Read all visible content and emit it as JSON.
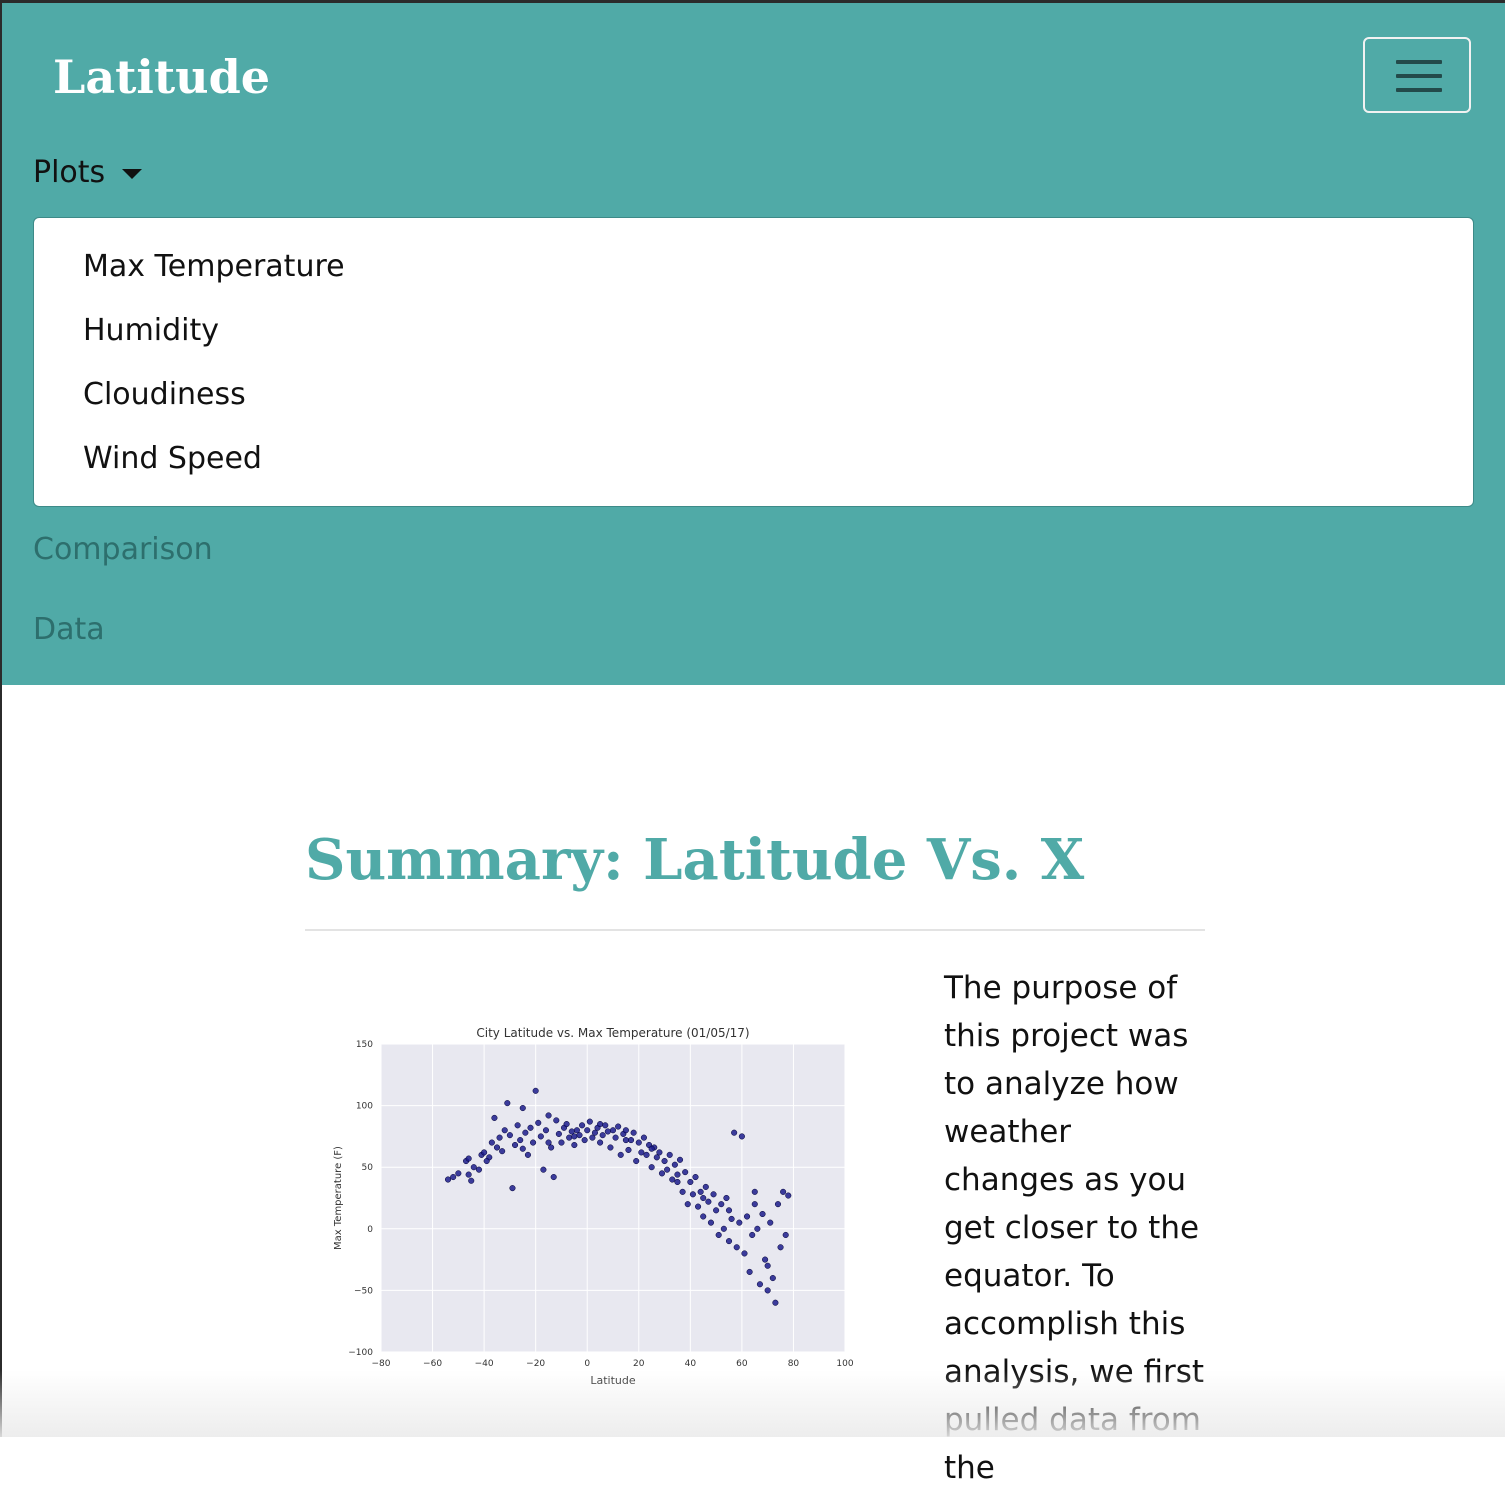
{
  "navbar": {
    "brand": "Latitude",
    "toggle_icon": "hamburger-menu-icon",
    "dropdown": {
      "label": "Plots",
      "caret_icon": "caret-down-icon",
      "items": [
        "Max Temperature",
        "Humidity",
        "Cloudiness",
        "Wind Speed"
      ]
    },
    "links": [
      "Comparison",
      "Data"
    ]
  },
  "main": {
    "heading": "Summary: Latitude Vs. X",
    "paragraph": "The purpose of this project was to analyze how weather changes as you get closer to the equator. To accomplish this analysis, we first pulled data from the"
  },
  "colors": {
    "accent": "#50aaa7",
    "dark_teal": "#2d6f6d",
    "marker": "#1c1c8c"
  },
  "chart_data": {
    "type": "scatter",
    "title": "City Latitude vs. Max Temperature (01/05/17)",
    "xlabel": "Latitude",
    "ylabel": "Max Temperature (F)",
    "xlim": [
      -80,
      100
    ],
    "ylim": [
      -100,
      150
    ],
    "xticks": [
      "−80",
      "−60",
      "−40",
      "−20",
      "0",
      "20",
      "40",
      "60",
      "80",
      "100"
    ],
    "yticks": [
      "150",
      "100",
      "50",
      "0",
      "−50",
      "−100"
    ],
    "grid": true,
    "points": [
      [
        -54,
        40
      ],
      [
        -52,
        42
      ],
      [
        -50,
        45
      ],
      [
        -47,
        55
      ],
      [
        -46,
        57
      ],
      [
        -46,
        44
      ],
      [
        -45,
        39
      ],
      [
        -44,
        50
      ],
      [
        -42,
        48
      ],
      [
        -41,
        60
      ],
      [
        -40,
        62
      ],
      [
        -38,
        58
      ],
      [
        -37,
        70
      ],
      [
        -36,
        90
      ],
      [
        -35,
        66
      ],
      [
        -34,
        74
      ],
      [
        -33,
        63
      ],
      [
        -32,
        80
      ],
      [
        -31,
        102
      ],
      [
        -30,
        76
      ],
      [
        -29,
        33
      ],
      [
        -28,
        68
      ],
      [
        -27,
        84
      ],
      [
        -26,
        72
      ],
      [
        -25,
        98
      ],
      [
        -24,
        78
      ],
      [
        -23,
        60
      ],
      [
        -22,
        82
      ],
      [
        -21,
        70
      ],
      [
        -20,
        112
      ],
      [
        -19,
        86
      ],
      [
        -18,
        75
      ],
      [
        -17,
        48
      ],
      [
        -16,
        80
      ],
      [
        -15,
        92
      ],
      [
        -14,
        66
      ],
      [
        -13,
        42
      ],
      [
        -12,
        88
      ],
      [
        -11,
        77
      ],
      [
        -10,
        70
      ],
      [
        -9,
        82
      ],
      [
        -8,
        85
      ],
      [
        -7,
        74
      ],
      [
        -6,
        79
      ],
      [
        -5,
        68
      ],
      [
        -4,
        80
      ],
      [
        -3,
        76
      ],
      [
        -2,
        84
      ],
      [
        -1,
        72
      ],
      [
        0,
        80
      ],
      [
        1,
        87
      ],
      [
        2,
        74
      ],
      [
        3,
        78
      ],
      [
        4,
        82
      ],
      [
        5,
        70
      ],
      [
        6,
        76
      ],
      [
        7,
        84
      ],
      [
        8,
        79
      ],
      [
        9,
        66
      ],
      [
        10,
        80
      ],
      [
        11,
        74
      ],
      [
        12,
        83
      ],
      [
        13,
        60
      ],
      [
        14,
        77
      ],
      [
        15,
        80
      ],
      [
        16,
        64
      ],
      [
        17,
        72
      ],
      [
        18,
        78
      ],
      [
        19,
        55
      ],
      [
        20,
        70
      ],
      [
        21,
        62
      ],
      [
        22,
        74
      ],
      [
        23,
        60
      ],
      [
        24,
        68
      ],
      [
        25,
        50
      ],
      [
        26,
        66
      ],
      [
        27,
        58
      ],
      [
        28,
        62
      ],
      [
        29,
        45
      ],
      [
        30,
        55
      ],
      [
        31,
        48
      ],
      [
        32,
        60
      ],
      [
        33,
        40
      ],
      [
        34,
        52
      ],
      [
        35,
        44
      ],
      [
        36,
        56
      ],
      [
        37,
        30
      ],
      [
        38,
        46
      ],
      [
        39,
        20
      ],
      [
        40,
        38
      ],
      [
        41,
        28
      ],
      [
        42,
        42
      ],
      [
        43,
        18
      ],
      [
        44,
        30
      ],
      [
        45,
        10
      ],
      [
        46,
        34
      ],
      [
        47,
        22
      ],
      [
        48,
        5
      ],
      [
        49,
        28
      ],
      [
        50,
        15
      ],
      [
        51,
        -5
      ],
      [
        52,
        20
      ],
      [
        53,
        0
      ],
      [
        54,
        25
      ],
      [
        55,
        -10
      ],
      [
        56,
        8
      ],
      [
        57,
        78
      ],
      [
        58,
        -15
      ],
      [
        59,
        5
      ],
      [
        60,
        75
      ],
      [
        61,
        -20
      ],
      [
        62,
        10
      ],
      [
        63,
        -35
      ],
      [
        64,
        -5
      ],
      [
        65,
        30
      ],
      [
        66,
        0
      ],
      [
        67,
        -45
      ],
      [
        68,
        12
      ],
      [
        69,
        -25
      ],
      [
        70,
        -50
      ],
      [
        71,
        5
      ],
      [
        72,
        -40
      ],
      [
        73,
        -60
      ],
      [
        74,
        20
      ],
      [
        75,
        -15
      ],
      [
        76,
        30
      ],
      [
        77,
        -5
      ],
      [
        78,
        27
      ],
      [
        -39,
        55
      ],
      [
        -25,
        65
      ],
      [
        -15,
        70
      ],
      [
        -5,
        75
      ],
      [
        5,
        85
      ],
      [
        15,
        72
      ],
      [
        25,
        65
      ],
      [
        35,
        38
      ],
      [
        45,
        25
      ],
      [
        55,
        15
      ],
      [
        65,
        20
      ],
      [
        70,
        -30
      ]
    ]
  }
}
